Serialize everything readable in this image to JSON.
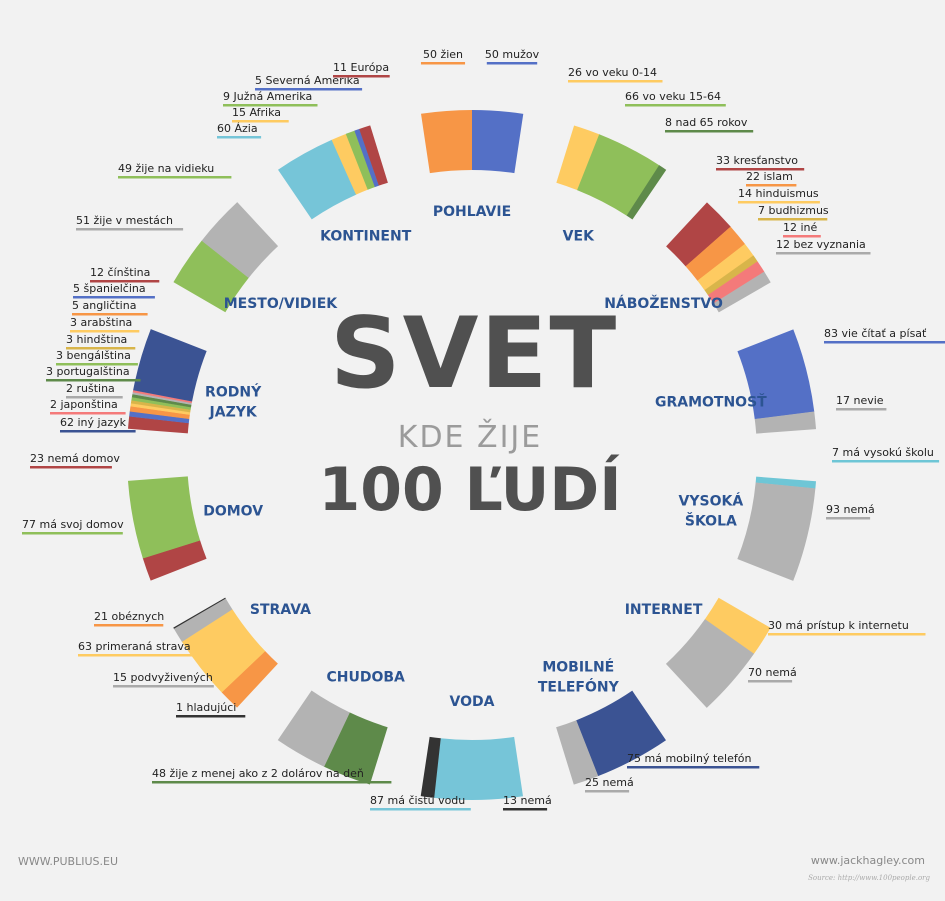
{
  "header": {
    "title": "SVET",
    "subtitle": "KDE ŽIJE",
    "headline": "100 ĽUDÍ"
  },
  "footer": {
    "left": "WWW.PUBLIUS.EU",
    "right": "www.jackhagley.com",
    "source": "Source: http://www.100people.org"
  },
  "chart_data": {
    "type": "radial-stacked-bar",
    "total": 100,
    "categories": [
      {
        "id": "pohlavie",
        "label": [
          "POHLAVIE"
        ],
        "segments": [
          {
            "value": 50,
            "label": "50 žien",
            "color": "#f79646"
          },
          {
            "value": 50,
            "label": "50 mužov",
            "color": "#5470c6"
          }
        ]
      },
      {
        "id": "vek",
        "label": [
          "VEK"
        ],
        "segments": [
          {
            "value": 26,
            "label": "26 vo veku 0-14",
            "color": "#fecb61"
          },
          {
            "value": 66,
            "label": "66 vo veku 15-64",
            "color": "#8fbf5a"
          },
          {
            "value": 8,
            "label": "8 nad 65 rokov",
            "color": "#5e8a4a"
          }
        ]
      },
      {
        "id": "nabozenstvo",
        "label": [
          "NÁBOŽENSTVO"
        ],
        "segments": [
          {
            "value": 33,
            "label": "33 kresťanstvo",
            "color": "#b04545"
          },
          {
            "value": 22,
            "label": "22 islam",
            "color": "#f79646"
          },
          {
            "value": 14,
            "label": "14 hinduismus",
            "color": "#fecb61"
          },
          {
            "value": 7,
            "label": "7 budhizmus",
            "color": "#d8b54a"
          },
          {
            "value": 12,
            "label": "12 iné",
            "color": "#f47a7a"
          },
          {
            "value": 12,
            "label": "12 bez vyznania",
            "color": "#b3b3b3"
          }
        ]
      },
      {
        "id": "gramotnost",
        "label": [
          "GRAMOTNOSŤ"
        ],
        "segments": [
          {
            "value": 83,
            "label": "83 vie čítať a písať",
            "color": "#5470c6"
          },
          {
            "value": 17,
            "label": "17 nevie",
            "color": "#b3b3b3"
          }
        ]
      },
      {
        "id": "vysoka",
        "label": [
          "VYSOKÁ",
          "ŠKOLA"
        ],
        "segments": [
          {
            "value": 7,
            "label": "7 má vysokú školu",
            "color": "#6ec6d6"
          },
          {
            "value": 93,
            "label": "93 nemá",
            "color": "#b3b3b3"
          }
        ]
      },
      {
        "id": "internet",
        "label": [
          "INTERNET"
        ],
        "segments": [
          {
            "value": 30,
            "label": "30 má prístup k internetu",
            "color": "#fecb61"
          },
          {
            "value": 70,
            "label": "70 nemá",
            "color": "#b3b3b3"
          }
        ]
      },
      {
        "id": "mobil",
        "label": [
          "MOBILNÉ",
          "TELEFÓNY"
        ],
        "segments": [
          {
            "value": 75,
            "label": "75 má mobilný telefón",
            "color": "#3b5393"
          },
          {
            "value": 25,
            "label": "25 nemá",
            "color": "#b3b3b3"
          }
        ]
      },
      {
        "id": "voda",
        "label": [
          "VODA"
        ],
        "segments": [
          {
            "value": 87,
            "label": "87 má čistú vodu",
            "color": "#76c5d8"
          },
          {
            "value": 13,
            "label": "13 nemá",
            "color": "#333333"
          }
        ]
      },
      {
        "id": "chudoba",
        "label": [
          "CHUDOBA"
        ],
        "segments": [
          {
            "value": 48,
            "label": "48 žije z menej ako z 2 dolárov na deň",
            "color": "#5e8a4a"
          },
          {
            "value": 52,
            "label": "",
            "color": "#b3b3b3"
          }
        ]
      },
      {
        "id": "strava",
        "label": [
          "STRAVA"
        ],
        "segments": [
          {
            "value": 21,
            "label": "21 obéznych",
            "color": "#f79646"
          },
          {
            "value": 63,
            "label": "63 primeraná strava",
            "color": "#fecb61"
          },
          {
            "value": 15,
            "label": "15 podvyživených",
            "color": "#b3b3b3"
          },
          {
            "value": 1,
            "label": "1 hladujúci",
            "color": "#333333"
          }
        ]
      },
      {
        "id": "domov",
        "label": [
          "DOMOV"
        ],
        "segments": [
          {
            "value": 23,
            "label": "23 nemá domov",
            "color": "#b04545"
          },
          {
            "value": 77,
            "label": "77 má svoj domov",
            "color": "#8fbf5a"
          }
        ]
      },
      {
        "id": "jazyk",
        "label": [
          "RODNÝ",
          "JAZYK"
        ],
        "segments": [
          {
            "value": 12,
            "label": "12 čínština",
            "color": "#b04545"
          },
          {
            "value": 5,
            "label": "5 španielčina",
            "color": "#5470c6"
          },
          {
            "value": 5,
            "label": "5 angličtina",
            "color": "#f79646"
          },
          {
            "value": 3,
            "label": "3 arabština",
            "color": "#fecb61"
          },
          {
            "value": 3,
            "label": "3 hindština",
            "color": "#d8b54a"
          },
          {
            "value": 3,
            "label": "3 bengálština",
            "color": "#8fbf5a"
          },
          {
            "value": 3,
            "label": "3 portugalština",
            "color": "#5e8a4a"
          },
          {
            "value": 2,
            "label": "2 ruština",
            "color": "#b3b3b3"
          },
          {
            "value": 2,
            "label": "2 japonština",
            "color": "#f47a7a"
          },
          {
            "value": 62,
            "label": "62 iný jazyk",
            "color": "#3b5393"
          }
        ]
      },
      {
        "id": "mesto",
        "label": [
          "MESTO/VIDIEK"
        ],
        "segments": [
          {
            "value": 49,
            "label": "49 žije na vidieku",
            "color": "#8fbf5a"
          },
          {
            "value": 51,
            "label": "51 žije v mestách",
            "color": "#b3b3b3"
          }
        ]
      },
      {
        "id": "kontinent",
        "label": [
          "KONTINENT"
        ],
        "segments": [
          {
            "value": 60,
            "label": "60 Ázia",
            "color": "#76c5d8"
          },
          {
            "value": 15,
            "label": "15 Afrika",
            "color": "#fecb61"
          },
          {
            "value": 9,
            "label": "9 Južná Amerika",
            "color": "#8fbf5a"
          },
          {
            "value": 5,
            "label": "5 Severná Amerika",
            "color": "#5470c6"
          },
          {
            "value": 11,
            "label": "11 Európa",
            "color": "#b04545"
          }
        ]
      }
    ]
  }
}
